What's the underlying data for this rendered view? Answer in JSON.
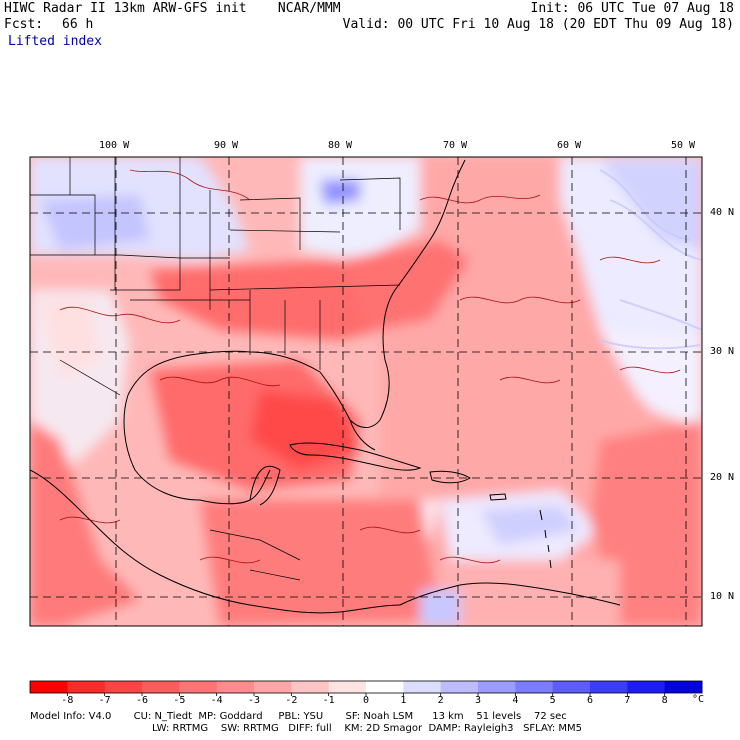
{
  "header": {
    "model_line": "HIWC Radar II 13km ARW-GFS init    NCAR/MMM",
    "init_line": "Init: 06 UTC Tue 07 Aug 18",
    "fcst_label": "Fcst:",
    "fcst_value": "66 h",
    "valid_line": "Valid: 00 UTC Fri 10 Aug 18 (20 EDT Thu 09 Aug 18)",
    "field_name": "Lifted index"
  },
  "map": {
    "lon_labels": [
      "100 W",
      "90 W",
      "80 W",
      "70 W",
      "60 W",
      "50 W"
    ],
    "lat_labels": [
      "40 N",
      "30 N",
      "20 N",
      "10 N"
    ]
  },
  "colorbar": {
    "tick_labels": [
      "-8",
      "-7",
      "-6",
      "-5",
      "-4",
      "-3",
      "-2",
      "-1",
      "0",
      "1",
      "2",
      "3",
      "4",
      "5",
      "6",
      "7",
      "8"
    ],
    "unit": "°C",
    "colors": [
      "#ff0000",
      "#ff2a2a",
      "#ff4444",
      "#ff5c5c",
      "#ff7474",
      "#ff8c8c",
      "#ffa6a6",
      "#ffc4c4",
      "#ffe2e2",
      "#ffffff",
      "#dcdcff",
      "#bcbcff",
      "#9c9cff",
      "#7c7cff",
      "#5c5cff",
      "#3c3cff",
      "#1c1cff",
      "#0000e0"
    ]
  },
  "footer": {
    "line1": "Model Info: V4.0       CU: N_Tiedt  MP: Goddard     PBL: YSU       SF: Noah LSM      13 km    51 levels    72 sec",
    "line2": "LW: RRTMG    SW: RRTMG   DIFF: full    KM: 2D Smagor  DAMP: Rayleigh3   SFLAY: MM5"
  }
}
